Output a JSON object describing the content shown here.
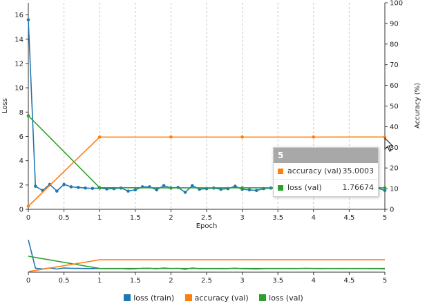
{
  "chart_data": [
    {
      "type": "line",
      "xlabel": "Epoch",
      "ylabel": "Loss",
      "y2label": "Accuracy (%)",
      "xlim": [
        0,
        5
      ],
      "ylim": [
        0,
        17
      ],
      "y2lim": [
        0,
        100
      ],
      "xticks": [
        "0",
        "0.5",
        "1",
        "1.5",
        "2",
        "2.5",
        "3",
        "3.5",
        "4",
        "4.5",
        "5"
      ],
      "yticks": [
        "0",
        "2",
        "4",
        "6",
        "8",
        "10",
        "12",
        "14",
        "16"
      ],
      "y2ticks": [
        "0",
        "10",
        "20",
        "30",
        "40",
        "50",
        "60",
        "70",
        "80",
        "90",
        "100"
      ],
      "grid": "vertical dashed",
      "series": [
        {
          "name": "loss (train)",
          "axis": "left",
          "color": "#1f77b4",
          "markers": true,
          "x": [
            0,
            0.1,
            0.2,
            0.3,
            0.4,
            0.5,
            0.6,
            0.7,
            0.8,
            0.9,
            1.0,
            1.1,
            1.2,
            1.3,
            1.4,
            1.5,
            1.6,
            1.7,
            1.8,
            1.9,
            2.0,
            2.1,
            2.2,
            2.3,
            2.4,
            2.5,
            2.6,
            2.7,
            2.8,
            2.9,
            3.0,
            3.1,
            3.2,
            3.3,
            3.4,
            3.5,
            3.6,
            3.7,
            3.8,
            3.9,
            4.0,
            4.1,
            4.2,
            4.3,
            4.4,
            4.5,
            4.6,
            4.7,
            4.8,
            4.9,
            5.0
          ],
          "y": [
            15.6,
            1.9,
            1.55,
            2.05,
            1.5,
            2.05,
            1.85,
            1.8,
            1.75,
            1.72,
            1.75,
            1.68,
            1.7,
            1.75,
            1.5,
            1.6,
            1.85,
            1.85,
            1.6,
            1.95,
            1.75,
            1.8,
            1.4,
            1.95,
            1.65,
            1.7,
            1.75,
            1.65,
            1.7,
            1.9,
            1.65,
            1.6,
            1.55,
            1.7,
            1.75,
            1.7,
            1.75,
            1.7,
            1.75,
            1.8,
            1.75,
            1.7,
            1.75,
            1.72,
            1.7,
            1.75,
            1.7,
            1.72,
            1.7,
            1.75,
            1.55
          ]
        },
        {
          "name": "accuracy (val)",
          "axis": "right",
          "color": "#ff7f0e",
          "markers": true,
          "x": [
            0,
            1,
            2,
            3,
            4,
            5
          ],
          "y": [
            1.5,
            35.0,
            35.0,
            35.0,
            35.0,
            35.0003
          ]
        },
        {
          "name": "loss (val)",
          "axis": "left",
          "color": "#2ca02c",
          "markers": true,
          "x": [
            0,
            1,
            2,
            3,
            4,
            5
          ],
          "y": [
            7.7,
            1.78,
            1.77,
            1.77,
            1.77,
            1.76674
          ]
        }
      ]
    },
    {
      "type": "line",
      "role": "overview",
      "xlim": [
        0,
        5
      ],
      "xticks": [
        "0",
        "0.5",
        "1",
        "1.5",
        "2",
        "2.5",
        "3",
        "3.5",
        "4",
        "4.5",
        "5"
      ]
    }
  ],
  "tooltip": {
    "header": "5",
    "rows": [
      {
        "label": "accuracy (val)",
        "value": "35.0003",
        "color": "#ff7f0e"
      },
      {
        "label": "loss (val)",
        "value": "1.76674",
        "color": "#2ca02c"
      }
    ]
  },
  "legend": [
    {
      "label": "loss (train)",
      "color": "#1f77b4"
    },
    {
      "label": "accuracy (val)",
      "color": "#ff7f0e"
    },
    {
      "label": "loss (val)",
      "color": "#2ca02c"
    }
  ]
}
